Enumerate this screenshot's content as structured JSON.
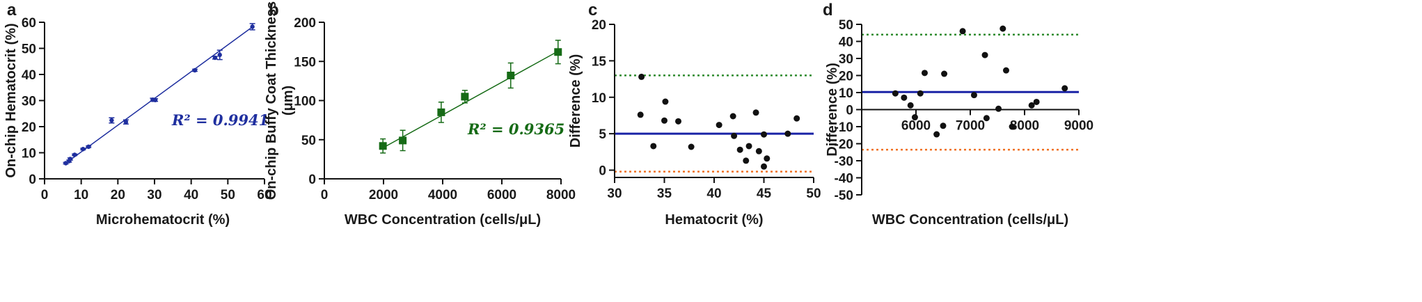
{
  "chart_data": [
    {
      "panel": "a",
      "type": "scatter",
      "xlabel": "Microhematocrit (%)",
      "ylabel": "On-chip Hematocrit (%)",
      "xlim": [
        0,
        60
      ],
      "ylim": [
        0,
        60
      ],
      "xticks": [
        0,
        10,
        20,
        30,
        40,
        50,
        60
      ],
      "yticks": [
        0,
        10,
        20,
        30,
        40,
        50,
        60
      ],
      "color": "#1f2f9f",
      "marker": "circle",
      "annotation": "R² = 0.9941",
      "fit_line": {
        "x": [
          5.5,
          56.5
        ],
        "y": [
          5.7,
          58.0
        ]
      },
      "points": [
        {
          "x": 5.8,
          "y": 6.0,
          "err": 0.3
        },
        {
          "x": 6.7,
          "y": 6.8,
          "err": 0.4
        },
        {
          "x": 7.0,
          "y": 7.6,
          "err": 0.4
        },
        {
          "x": 8.2,
          "y": 9.2,
          "err": 0.3
        },
        {
          "x": 10.5,
          "y": 11.4,
          "err": 0.3
        },
        {
          "x": 12.0,
          "y": 12.3,
          "err": 0.3
        },
        {
          "x": 18.3,
          "y": 22.4,
          "err": 1.0
        },
        {
          "x": 22.2,
          "y": 21.8,
          "err": 0.8
        },
        {
          "x": 29.5,
          "y": 30.3,
          "err": 0.6
        },
        {
          "x": 30.2,
          "y": 30.2,
          "err": 0.5
        },
        {
          "x": 41.0,
          "y": 41.6,
          "err": 0.4
        },
        {
          "x": 46.5,
          "y": 46.4,
          "err": 0.5
        },
        {
          "x": 47.8,
          "y": 47.5,
          "err": 1.8
        },
        {
          "x": 56.7,
          "y": 58.3,
          "err": 1.2
        }
      ]
    },
    {
      "panel": "b",
      "type": "scatter",
      "xlabel": "WBC Concentration (cells/μL)",
      "ylabel_lines": [
        "On-chip Buffy Coat Thickness",
        "(μm)"
      ],
      "xlim": [
        0,
        8000
      ],
      "ylim": [
        0,
        200
      ],
      "xticks": [
        0,
        2000,
        4000,
        6000,
        8000
      ],
      "yticks": [
        0,
        50,
        100,
        150,
        200
      ],
      "color": "#166b16",
      "marker": "square",
      "annotation": "R² = 0.9365",
      "fit_line": {
        "x": [
          2000,
          7900
        ],
        "y": [
          40,
          163
        ]
      },
      "points": [
        {
          "x": 1980,
          "y": 42,
          "err": 9
        },
        {
          "x": 2650,
          "y": 49,
          "err": 13
        },
        {
          "x": 3950,
          "y": 85,
          "err": 13
        },
        {
          "x": 4750,
          "y": 105,
          "err": 8
        },
        {
          "x": 6300,
          "y": 132,
          "err": 16
        },
        {
          "x": 7900,
          "y": 162,
          "err": 15
        }
      ]
    },
    {
      "panel": "c",
      "type": "scatter",
      "xlabel": "Hematocrit (%)",
      "ylabel": "Difference (%)",
      "xlim": [
        30,
        50
      ],
      "ylim": [
        -1,
        20
      ],
      "xticks": [
        30,
        35,
        40,
        45,
        50
      ],
      "yticks": [
        0,
        5,
        10,
        15,
        20
      ],
      "color": "#111111",
      "marker": "circle",
      "mean_line": {
        "y": 5.0,
        "color": "#1a23a6"
      },
      "upper_limit": {
        "y": 13.0,
        "color": "#2e8b2e"
      },
      "lower_limit": {
        "y": -0.2,
        "color": "#f07020"
      },
      "points": [
        {
          "x": 32.7,
          "y": 12.8
        },
        {
          "x": 32.6,
          "y": 7.6
        },
        {
          "x": 33.9,
          "y": 3.3
        },
        {
          "x": 35.0,
          "y": 6.8
        },
        {
          "x": 35.1,
          "y": 9.4
        },
        {
          "x": 36.4,
          "y": 6.7
        },
        {
          "x": 37.7,
          "y": 3.2
        },
        {
          "x": 40.5,
          "y": 6.2
        },
        {
          "x": 41.9,
          "y": 7.4
        },
        {
          "x": 42.0,
          "y": 4.7
        },
        {
          "x": 42.6,
          "y": 2.8
        },
        {
          "x": 43.2,
          "y": 1.3
        },
        {
          "x": 43.5,
          "y": 3.3
        },
        {
          "x": 44.2,
          "y": 7.9
        },
        {
          "x": 44.5,
          "y": 2.6
        },
        {
          "x": 45.0,
          "y": 0.5
        },
        {
          "x": 45.0,
          "y": 4.9
        },
        {
          "x": 45.3,
          "y": 1.6
        },
        {
          "x": 47.4,
          "y": 5.0
        },
        {
          "x": 48.3,
          "y": 7.1
        }
      ]
    },
    {
      "panel": "d",
      "type": "scatter",
      "xlabel": "WBC Concentration (cells/μL)",
      "ylabel": "Difference (%)",
      "xlim": [
        5000,
        9000
      ],
      "ylim": [
        -50,
        50
      ],
      "xticks": [
        6000,
        7000,
        8000,
        9000
      ],
      "yticks": [
        -50,
        -40,
        -30,
        -20,
        -10,
        0,
        10,
        20,
        30,
        40,
        50
      ],
      "color": "#111111",
      "marker": "circle",
      "mean_line": {
        "y": 10.3,
        "color": "#1a23a6"
      },
      "upper_limit": {
        "y": 44.0,
        "color": "#2e8b2e"
      },
      "lower_limit": {
        "y": -23.5,
        "color": "#f07020"
      },
      "points": [
        {
          "x": 5620,
          "y": 9.5
        },
        {
          "x": 5780,
          "y": 7.0
        },
        {
          "x": 5900,
          "y": 2.5
        },
        {
          "x": 5980,
          "y": -4.5
        },
        {
          "x": 6080,
          "y": 9.5
        },
        {
          "x": 6160,
          "y": 21.5
        },
        {
          "x": 6380,
          "y": -14.5
        },
        {
          "x": 6500,
          "y": -9.5
        },
        {
          "x": 6520,
          "y": 21.0
        },
        {
          "x": 6860,
          "y": 46.0
        },
        {
          "x": 7070,
          "y": 8.5
        },
        {
          "x": 7270,
          "y": 32.0
        },
        {
          "x": 7300,
          "y": -5.0
        },
        {
          "x": 7520,
          "y": 0.5
        },
        {
          "x": 7600,
          "y": 47.5
        },
        {
          "x": 7660,
          "y": 23.0
        },
        {
          "x": 7770,
          "y": -10.0
        },
        {
          "x": 8130,
          "y": 2.5
        },
        {
          "x": 8220,
          "y": 4.5
        },
        {
          "x": 8740,
          "y": 12.5
        }
      ]
    }
  ]
}
